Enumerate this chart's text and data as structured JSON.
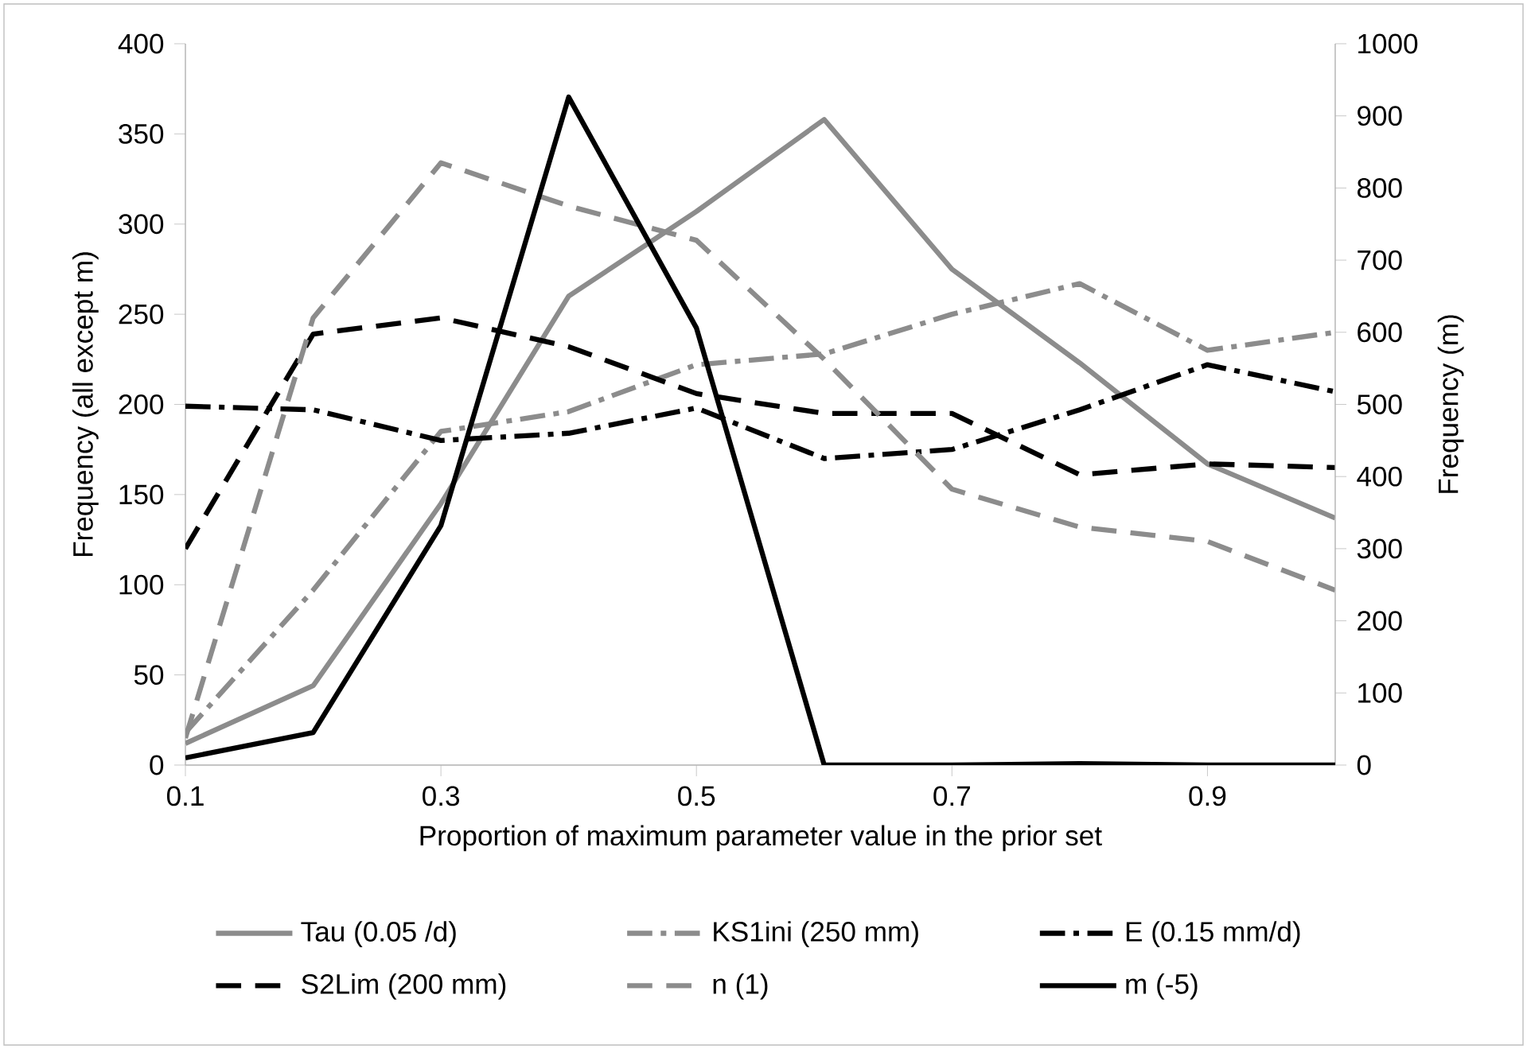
{
  "chart_data": {
    "type": "line",
    "xlabel": "Proportion of maximum parameter value in the prior set",
    "ylabel": "Frequency (all except m)",
    "y2label": "Frequency (m)",
    "x": [
      0.1,
      0.2,
      0.3,
      0.4,
      0.5,
      0.6,
      0.7,
      0.8,
      0.9,
      1.0
    ],
    "xlim": [
      0.1,
      1.0
    ],
    "xticks": [
      0.1,
      0.3,
      0.5,
      0.7,
      0.9
    ],
    "ylim": [
      0,
      400
    ],
    "yticks": [
      0,
      50,
      100,
      150,
      200,
      250,
      300,
      350,
      400
    ],
    "y2lim": [
      0,
      1000
    ],
    "y2ticks": [
      0,
      100,
      200,
      300,
      400,
      500,
      600,
      700,
      800,
      900,
      1000
    ],
    "legend": "bottom",
    "grid": false,
    "marker": "none",
    "series": [
      {
        "name": "Tau (0.05 /d)",
        "color": "#8c8c8c",
        "line_style": "solid",
        "values": [
          12,
          44,
          145,
          260,
          307,
          358,
          275,
          223,
          167,
          137
        ]
      },
      {
        "name": "KS1ini (250 mm)",
        "color": "#8c8c8c",
        "line_style": "dashdot",
        "values": [
          18,
          97,
          185,
          196,
          222,
          228,
          250,
          267,
          230,
          240
        ]
      },
      {
        "name": "E (0.15 mm/d)",
        "color": "#000000",
        "line_style": "dashdot",
        "values": [
          199,
          197,
          180,
          184,
          198,
          170,
          175,
          197,
          222,
          207
        ]
      },
      {
        "name": "S2Lim (200 mm)",
        "color": "#000000",
        "line_style": "dashed",
        "values": [
          120,
          239,
          248,
          232,
          206,
          195,
          195,
          161,
          167,
          165
        ]
      },
      {
        "name": "n (1)",
        "color": "#8c8c8c",
        "line_style": "dashed",
        "values": [
          15,
          248,
          334,
          310,
          291,
          225,
          153,
          132,
          124,
          97
        ]
      },
      {
        "name": "m (-5)",
        "color": "#000000",
        "line_style": "solid",
        "axis": "y2",
        "values": [
          10,
          45,
          332,
          926,
          606,
          0,
          0,
          2,
          0,
          0
        ]
      }
    ]
  }
}
